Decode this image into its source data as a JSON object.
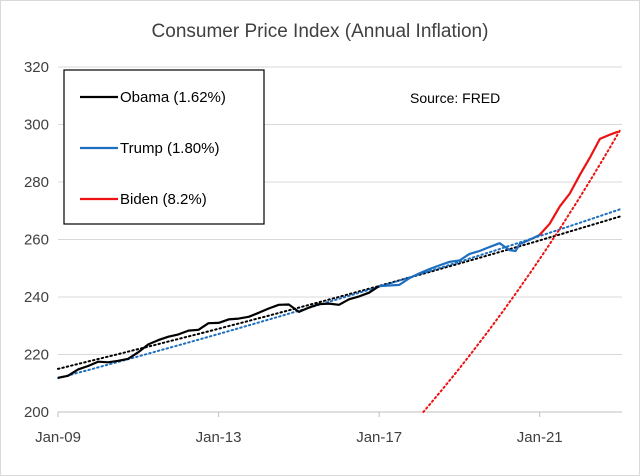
{
  "chart_data": {
    "type": "line",
    "title": "Consumer Price Index (Annual Inflation)",
    "xlabel": "",
    "ylabel": "",
    "x_ticks": [
      "Jan-09",
      "Jan-13",
      "Jan-17",
      "Jan-21"
    ],
    "y_ticks": [
      200,
      220,
      240,
      260,
      280,
      300,
      320
    ],
    "ylim": [
      200,
      320
    ],
    "xlim": [
      "Jan-09",
      "Dec-22"
    ],
    "grid": "horizontal",
    "legend_position": "top-left",
    "annotation": "Source: FRED",
    "colors": {
      "Obama (1.62%)": "#000000",
      "Trump (1.80%)": "#1f6fc0",
      "Biden (8.2%)": "#ee1111"
    },
    "series": [
      {
        "name": "Obama (1.62%)",
        "x": [
          2009.0,
          2009.25,
          2009.5,
          2009.75,
          2010.0,
          2010.25,
          2010.5,
          2010.75,
          2011.0,
          2011.25,
          2011.5,
          2011.75,
          2012.0,
          2012.25,
          2012.5,
          2012.75,
          2013.0,
          2013.25,
          2013.5,
          2013.75,
          2014.0,
          2014.25,
          2014.5,
          2014.75,
          2015.0,
          2015.25,
          2015.5,
          2015.75,
          2016.0,
          2016.25,
          2016.5,
          2016.75,
          2017.0
        ],
        "y": [
          211.9,
          212.6,
          214.8,
          216.0,
          217.5,
          217.3,
          217.8,
          218.5,
          220.8,
          223.5,
          225.0,
          226.2,
          227.0,
          228.3,
          228.6,
          230.9,
          231.0,
          232.2,
          232.5,
          233.1,
          234.5,
          236.0,
          237.3,
          237.4,
          234.8,
          236.3,
          237.5,
          237.7,
          237.3,
          239.2,
          240.2,
          241.5,
          243.8
        ]
      },
      {
        "name": "Trump (1.80%)",
        "x": [
          2017.0,
          2017.25,
          2017.5,
          2017.75,
          2018.0,
          2018.25,
          2018.5,
          2018.75,
          2019.0,
          2019.25,
          2019.5,
          2019.75,
          2020.0,
          2020.25,
          2020.4,
          2020.5,
          2020.75,
          2021.0
        ],
        "y": [
          243.8,
          244.0,
          244.2,
          246.5,
          248.2,
          249.7,
          251.0,
          252.2,
          252.7,
          255.0,
          256.0,
          257.4,
          258.7,
          256.3,
          256.0,
          258.4,
          259.9,
          261.6
        ]
      },
      {
        "name": "Biden (8.2%)",
        "x": [
          2021.0,
          2021.25,
          2021.5,
          2021.75,
          2022.0,
          2022.25,
          2022.5,
          2022.75,
          2022.95
        ],
        "y": [
          261.6,
          265.5,
          271.5,
          276.0,
          282.5,
          288.5,
          295.0,
          296.5,
          297.5
        ]
      }
    ],
    "trendlines": [
      {
        "series": "Obama (1.62%)",
        "type": "exponential",
        "x": [
          2009.0,
          2023.0
        ],
        "y": [
          215.0,
          268.0
        ]
      },
      {
        "series": "Trump (1.80%)",
        "type": "exponential",
        "x": [
          2009.0,
          2023.0
        ],
        "y": [
          211.8,
          270.5
        ]
      },
      {
        "series": "Biden (8.2%)",
        "type": "exponential",
        "x": [
          2018.1,
          2023.0
        ],
        "y": [
          200.0,
          298.0
        ]
      }
    ]
  }
}
